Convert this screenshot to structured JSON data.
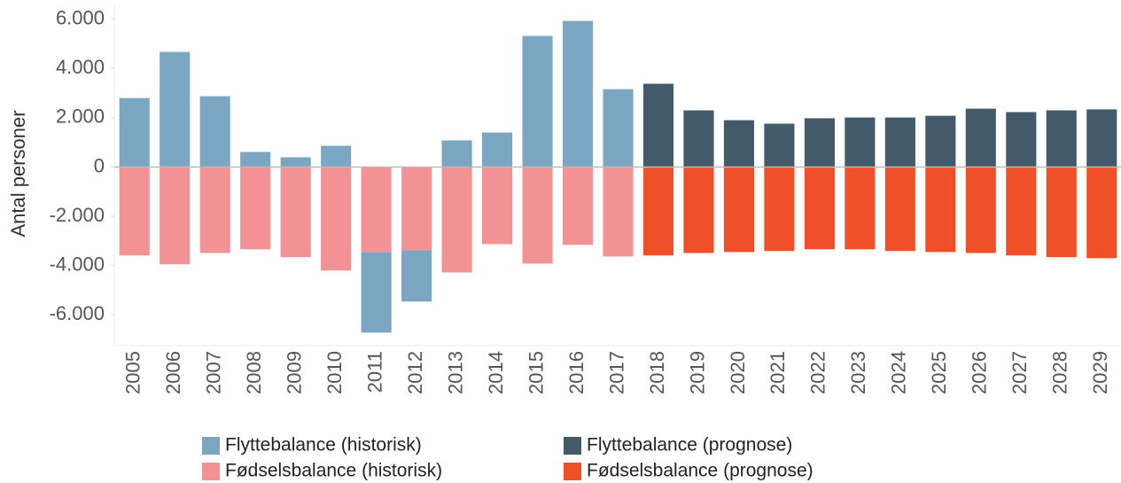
{
  "chart_data": {
    "type": "bar",
    "y_label": "Antal personer",
    "categories": [
      "2005",
      "2006",
      "2007",
      "2008",
      "2009",
      "2010",
      "2011",
      "2012",
      "2013",
      "2014",
      "2015",
      "2016",
      "2017",
      "2018",
      "2019",
      "2020",
      "2021",
      "2022",
      "2023",
      "2024",
      "2025",
      "2026",
      "2027",
      "2028",
      "2029"
    ],
    "series": [
      {
        "name": "Flyttebalance (historisk)",
        "color": "#7ba6c2",
        "values": [
          2800,
          4670,
          2875,
          610,
          395,
          860,
          -3270,
          -2080,
          1080,
          1400,
          5320,
          5930,
          3160,
          null,
          null,
          null,
          null,
          null,
          null,
          null,
          null,
          null,
          null,
          null,
          null
        ]
      },
      {
        "name": "Fødselsbalance (historisk)",
        "color": "#f29294",
        "values": [
          -3590,
          -3950,
          -3490,
          -3340,
          -3660,
          -4200,
          -3450,
          -3380,
          -4280,
          -3130,
          -3920,
          -3160,
          -3630,
          null,
          null,
          null,
          null,
          null,
          null,
          null,
          null,
          null,
          null,
          null,
          null
        ]
      },
      {
        "name": "Flyttebalance (prognose)",
        "color": "#435a6b",
        "values": [
          null,
          null,
          null,
          null,
          null,
          null,
          null,
          null,
          null,
          null,
          null,
          null,
          null,
          3380,
          2300,
          1900,
          1760,
          1980,
          2010,
          2010,
          2080,
          2370,
          2230,
          2300,
          2340
        ]
      },
      {
        "name": "Fødselsbalance (prognose)",
        "color": "#f05027",
        "values": [
          null,
          null,
          null,
          null,
          null,
          null,
          null,
          null,
          null,
          null,
          null,
          null,
          null,
          -3590,
          -3490,
          -3450,
          -3410,
          -3340,
          -3340,
          -3410,
          -3450,
          -3490,
          -3590,
          -3660,
          -3700
        ]
      }
    ],
    "stacked": true,
    "ylim": [
      -7250,
      6600
    ],
    "yticks": [
      {
        "value": -6000,
        "label": "-6.000"
      },
      {
        "value": -4000,
        "label": "-4.000"
      },
      {
        "value": -2000,
        "label": "-2.000"
      },
      0,
      {
        "value": 2000,
        "label": "2.000"
      },
      {
        "value": 4000,
        "label": "4.000"
      },
      {
        "value": 6000,
        "label": "6.000"
      }
    ],
    "legend_position": "bottom"
  }
}
